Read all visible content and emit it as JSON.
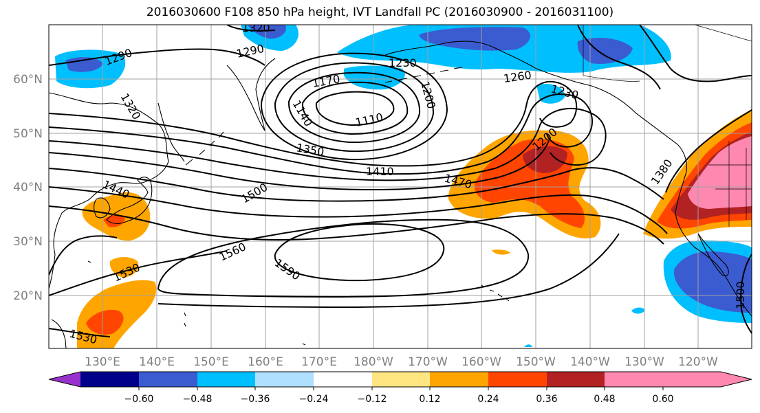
{
  "title": "2016030600 F108 850 hPa height, IVT Landfall PC (2016030900 - 2016031100)",
  "latitude_labels": [
    "60°N",
    "50°N",
    "40°N",
    "30°N",
    "20°N"
  ],
  "longitude_labels": [
    "130°E",
    "140°E",
    "150°E",
    "160°E",
    "170°E",
    "180°W",
    "170°W",
    "160°W",
    "150°W",
    "140°W",
    "130°W",
    "120°W"
  ],
  "contour_labels": [
    "1290",
    "1290",
    "1320",
    "1230",
    "1170",
    "1140",
    "1200",
    "1110",
    "1260",
    "1230",
    "1320",
    "1200",
    "1350",
    "1410",
    "1470",
    "1440",
    "1500",
    "1380",
    "1560",
    "1590",
    "1530",
    "1530",
    "1500"
  ],
  "colorbar": {
    "tick_labels": [
      "−0.60",
      "−0.48",
      "−0.36",
      "−0.24",
      "−0.12",
      "0.12",
      "0.24",
      "0.36",
      "0.48",
      "0.60"
    ],
    "colors": [
      "#9932cc",
      "#00008b",
      "#3b5bd0",
      "#00bfff",
      "#b0e0ff",
      "#ffffff",
      "#ffe680",
      "#ffa500",
      "#ff4500",
      "#b22222",
      "#ff88b0"
    ]
  },
  "colors": {
    "coast": "#000000",
    "grid": "#a0a0a0",
    "contour": "#000000",
    "axis_label": "#808080"
  }
}
